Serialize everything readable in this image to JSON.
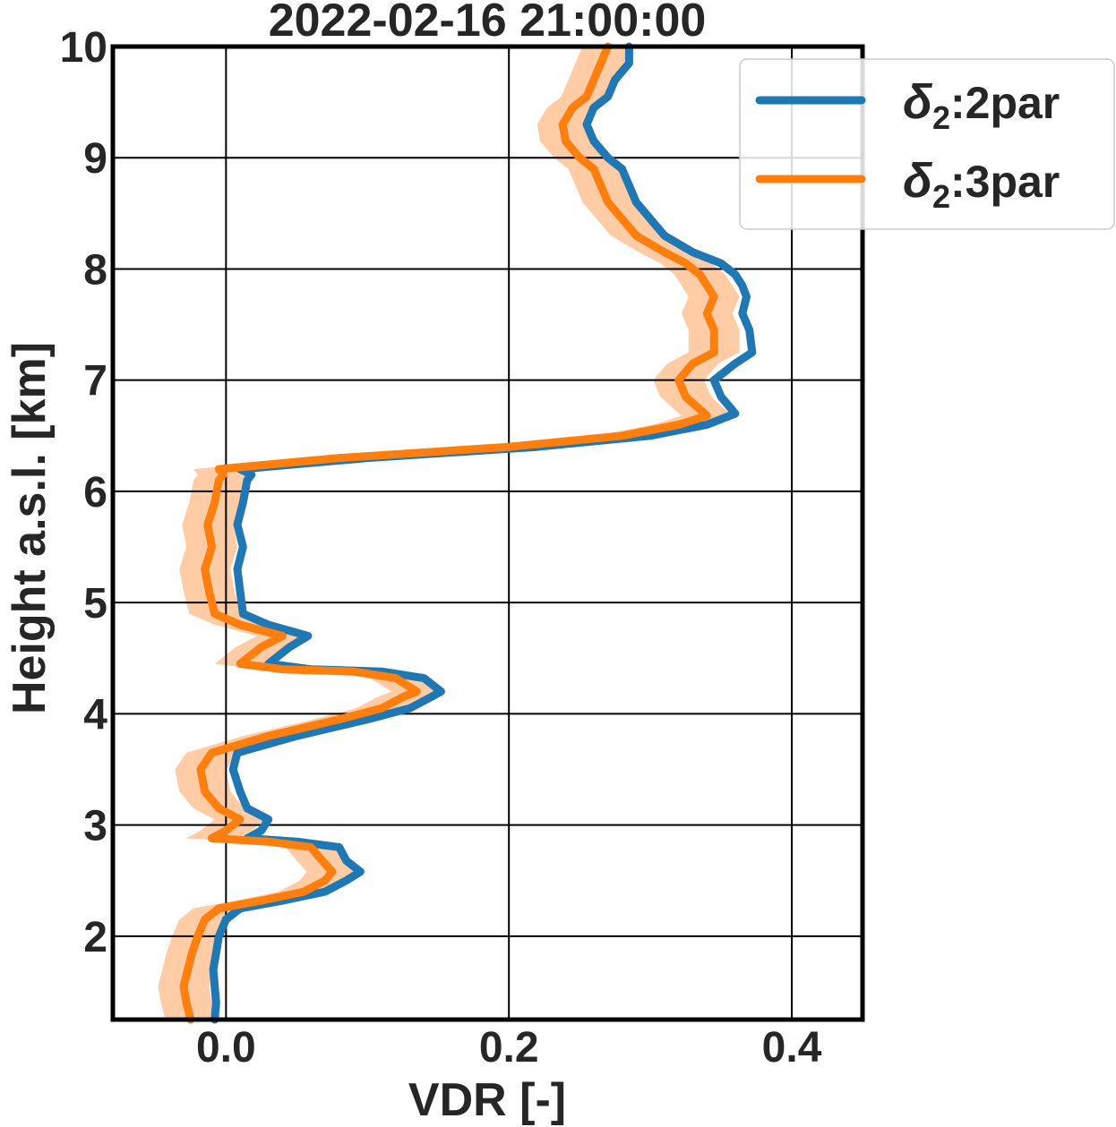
{
  "chart_data": {
    "type": "line",
    "title": "2022-02-16 21:00:00",
    "xlabel": "VDR [-]",
    "ylabel": "Height a.s.l. [km]",
    "xlim": [
      -0.08,
      0.45
    ],
    "ylim": [
      1.25,
      10.0
    ],
    "xticks": [
      0.0,
      0.2,
      0.4
    ],
    "xtick_labels": [
      "0.0",
      "0.2",
      "0.4"
    ],
    "yticks": [
      2,
      3,
      4,
      5,
      6,
      7,
      8,
      9,
      10
    ],
    "ytick_labels": [
      "2",
      "3",
      "4",
      "5",
      "6",
      "7",
      "8",
      "9",
      "10"
    ],
    "grid": true,
    "legend_position": "top-right",
    "series": [
      {
        "name_symbol": "δ",
        "name_sub": "2",
        "name_suffix": ":2par",
        "color": "#1f77b4",
        "points": [
          [
            -0.008,
            1.25
          ],
          [
            -0.007,
            1.4
          ],
          [
            -0.008,
            1.55
          ],
          [
            -0.009,
            1.7
          ],
          [
            -0.007,
            1.85
          ],
          [
            -0.005,
            2.0
          ],
          [
            0.0,
            2.15
          ],
          [
            0.01,
            2.25
          ],
          [
            0.04,
            2.32
          ],
          [
            0.07,
            2.4
          ],
          [
            0.085,
            2.5
          ],
          [
            0.095,
            2.58
          ],
          [
            0.085,
            2.68
          ],
          [
            0.08,
            2.8
          ],
          [
            0.05,
            2.85
          ],
          [
            0.015,
            2.88
          ],
          [
            0.025,
            2.95
          ],
          [
            0.03,
            3.05
          ],
          [
            0.015,
            3.15
          ],
          [
            0.01,
            3.3
          ],
          [
            0.005,
            3.5
          ],
          [
            0.008,
            3.65
          ],
          [
            0.05,
            3.8
          ],
          [
            0.1,
            3.95
          ],
          [
            0.13,
            4.05
          ],
          [
            0.145,
            4.15
          ],
          [
            0.152,
            4.2
          ],
          [
            0.14,
            4.32
          ],
          [
            0.11,
            4.38
          ],
          [
            0.06,
            4.4
          ],
          [
            0.03,
            4.45
          ],
          [
            0.045,
            4.6
          ],
          [
            0.058,
            4.7
          ],
          [
            0.03,
            4.8
          ],
          [
            0.012,
            4.9
          ],
          [
            0.01,
            5.1
          ],
          [
            0.008,
            5.3
          ],
          [
            0.012,
            5.5
          ],
          [
            0.008,
            5.7
          ],
          [
            0.012,
            5.9
          ],
          [
            0.015,
            6.1
          ],
          [
            0.018,
            6.15
          ],
          [
            0.01,
            6.2
          ],
          [
            0.1,
            6.3
          ],
          [
            0.22,
            6.4
          ],
          [
            0.3,
            6.5
          ],
          [
            0.34,
            6.6
          ],
          [
            0.36,
            6.7
          ],
          [
            0.35,
            6.85
          ],
          [
            0.345,
            7.0
          ],
          [
            0.36,
            7.15
          ],
          [
            0.372,
            7.25
          ],
          [
            0.37,
            7.45
          ],
          [
            0.365,
            7.6
          ],
          [
            0.368,
            7.75
          ],
          [
            0.365,
            7.85
          ],
          [
            0.36,
            7.95
          ],
          [
            0.35,
            8.05
          ],
          [
            0.33,
            8.15
          ],
          [
            0.31,
            8.3
          ],
          [
            0.3,
            8.45
          ],
          [
            0.29,
            8.6
          ],
          [
            0.285,
            8.75
          ],
          [
            0.28,
            8.9
          ],
          [
            0.27,
            9.0
          ],
          [
            0.26,
            9.15
          ],
          [
            0.255,
            9.3
          ],
          [
            0.26,
            9.45
          ],
          [
            0.27,
            9.55
          ],
          [
            0.275,
            9.7
          ],
          [
            0.285,
            9.85
          ],
          [
            0.285,
            10.0
          ]
        ]
      },
      {
        "name_symbol": "δ",
        "name_sub": "2",
        "name_suffix": ":3par",
        "color": "#ff7f0e",
        "points": [
          [
            -0.025,
            1.25
          ],
          [
            -0.028,
            1.4
          ],
          [
            -0.03,
            1.55
          ],
          [
            -0.027,
            1.7
          ],
          [
            -0.024,
            1.85
          ],
          [
            -0.02,
            2.0
          ],
          [
            -0.015,
            2.15
          ],
          [
            -0.005,
            2.25
          ],
          [
            0.025,
            2.32
          ],
          [
            0.055,
            2.4
          ],
          [
            0.07,
            2.5
          ],
          [
            0.075,
            2.58
          ],
          [
            0.068,
            2.68
          ],
          [
            0.06,
            2.8
          ],
          [
            0.03,
            2.85
          ],
          [
            -0.01,
            2.88
          ],
          [
            0.0,
            2.95
          ],
          [
            0.01,
            3.05
          ],
          [
            -0.005,
            3.15
          ],
          [
            -0.015,
            3.3
          ],
          [
            -0.018,
            3.5
          ],
          [
            -0.01,
            3.65
          ],
          [
            0.03,
            3.8
          ],
          [
            0.08,
            3.95
          ],
          [
            0.11,
            4.05
          ],
          [
            0.125,
            4.15
          ],
          [
            0.135,
            4.2
          ],
          [
            0.12,
            4.32
          ],
          [
            0.09,
            4.38
          ],
          [
            0.04,
            4.4
          ],
          [
            0.01,
            4.45
          ],
          [
            0.025,
            4.6
          ],
          [
            0.04,
            4.7
          ],
          [
            0.01,
            4.8
          ],
          [
            -0.008,
            4.9
          ],
          [
            -0.012,
            5.1
          ],
          [
            -0.015,
            5.3
          ],
          [
            -0.01,
            5.5
          ],
          [
            -0.013,
            5.7
          ],
          [
            -0.008,
            5.9
          ],
          [
            -0.005,
            6.1
          ],
          [
            -0.002,
            6.15
          ],
          [
            -0.005,
            6.2
          ],
          [
            0.08,
            6.3
          ],
          [
            0.2,
            6.4
          ],
          [
            0.28,
            6.5
          ],
          [
            0.32,
            6.6
          ],
          [
            0.34,
            6.68
          ],
          [
            0.325,
            6.85
          ],
          [
            0.32,
            7.0
          ],
          [
            0.33,
            7.15
          ],
          [
            0.345,
            7.25
          ],
          [
            0.345,
            7.45
          ],
          [
            0.34,
            7.6
          ],
          [
            0.345,
            7.75
          ],
          [
            0.34,
            7.85
          ],
          [
            0.335,
            7.95
          ],
          [
            0.325,
            8.05
          ],
          [
            0.31,
            8.15
          ],
          [
            0.29,
            8.3
          ],
          [
            0.28,
            8.45
          ],
          [
            0.27,
            8.6
          ],
          [
            0.265,
            8.75
          ],
          [
            0.26,
            8.9
          ],
          [
            0.25,
            9.0
          ],
          [
            0.24,
            9.15
          ],
          [
            0.238,
            9.3
          ],
          [
            0.245,
            9.45
          ],
          [
            0.255,
            9.55
          ],
          [
            0.26,
            9.7
          ],
          [
            0.265,
            9.85
          ],
          [
            0.27,
            10.0
          ]
        ]
      }
    ],
    "uncertainty_band": {
      "series_index": 1,
      "color": "#ffbb88",
      "halfwidth": 0.018
    }
  }
}
